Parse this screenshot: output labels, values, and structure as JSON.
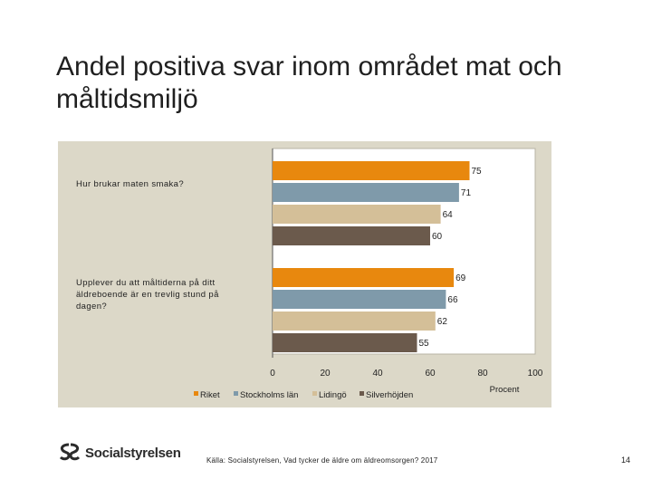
{
  "slide": {
    "title": "Andel positiva svar inom området mat och måltidsmiljö",
    "source": "Källa: Socialstyrelsen, Vad tycker de äldre om äldreomsorgen? 2017",
    "page_number": "14",
    "logo_text": "Socialstyrelsen"
  },
  "chart_data": {
    "type": "bar",
    "orientation": "horizontal",
    "categories": [
      "Hur brukar maten smaka?",
      "Upplever du att måltiderna på ditt äldreboende är en trevlig stund på dagen?"
    ],
    "series": [
      {
        "name": "Riket",
        "color": "#e8880e",
        "values": [
          75,
          69
        ]
      },
      {
        "name": "Stockholms län",
        "color": "#7f9aaa",
        "values": [
          71,
          66
        ]
      },
      {
        "name": "Lidingö",
        "color": "#d4bf98",
        "values": [
          64,
          62
        ]
      },
      {
        "name": "Silverhöjden",
        "color": "#6b5a4c",
        "values": [
          60,
          55
        ]
      }
    ],
    "xlim": [
      0,
      100
    ],
    "xticks": [
      0,
      20,
      40,
      60,
      80,
      100
    ],
    "xlabel": "Procent",
    "legend_position": "bottom"
  }
}
